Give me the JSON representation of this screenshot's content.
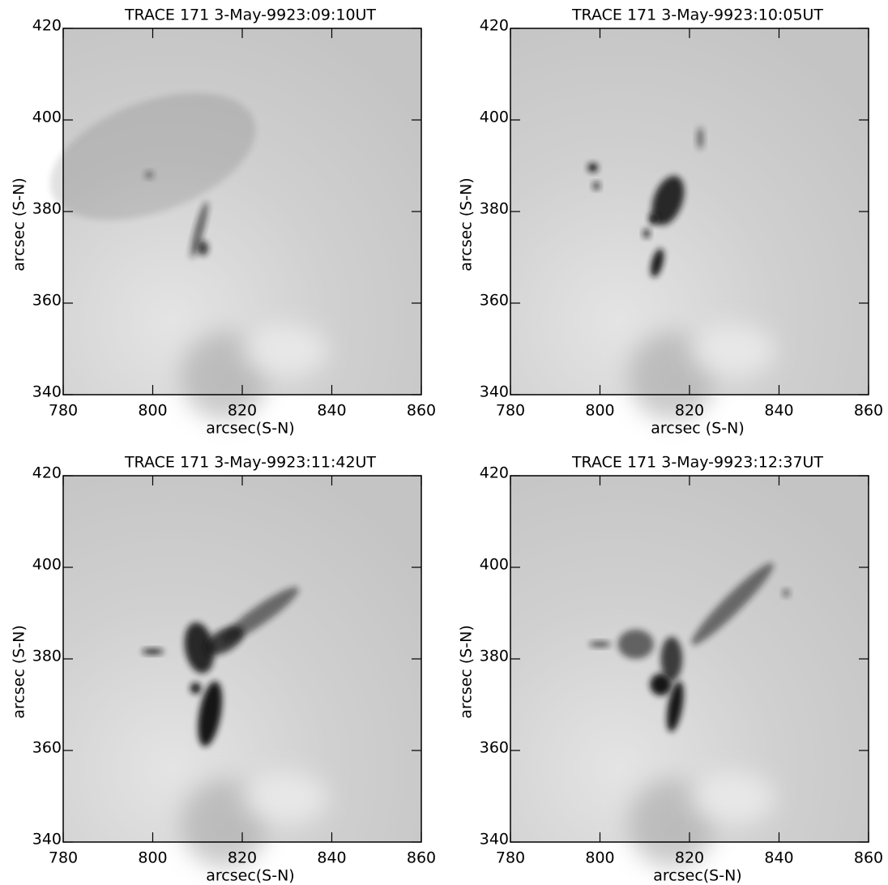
{
  "chart_data": [
    {
      "type": "image",
      "title": "TRACE 171 3-May-9923:09:10UT",
      "xlabel": "arcsec(S-N)",
      "ylabel": "arcsec (S-N)",
      "xlim": [
        780,
        860
      ],
      "ylim": [
        340,
        420
      ],
      "xticks": [
        780,
        800,
        820,
        840,
        860
      ],
      "yticks": [
        340,
        360,
        380,
        400,
        420
      ]
    },
    {
      "type": "image",
      "title": "TRACE 171 3-May-9923:10:05UT",
      "xlabel": "arcsec (S-N)",
      "ylabel": "arcsec (S-N)",
      "xlim": [
        780,
        860
      ],
      "ylim": [
        340,
        420
      ],
      "xticks": [
        780,
        800,
        820,
        840,
        860
      ],
      "yticks": [
        340,
        360,
        380,
        400,
        420
      ]
    },
    {
      "type": "image",
      "title": "TRACE 171 3-May-9923:11:42UT",
      "xlabel": "arcsec(S-N)",
      "ylabel": "arcsec (S-N)",
      "xlim": [
        780,
        860
      ],
      "ylim": [
        340,
        420
      ],
      "xticks": [
        780,
        800,
        820,
        840,
        860
      ],
      "yticks": [
        340,
        360,
        380,
        400,
        420
      ]
    },
    {
      "type": "image",
      "title": "TRACE 171 3-May-9923:12:37UT",
      "xlabel": "arcsec(S-N)",
      "ylabel": "arcsec (S-N)",
      "xlim": [
        780,
        860
      ],
      "ylim": [
        340,
        420
      ],
      "xticks": [
        780,
        800,
        820,
        840,
        860
      ],
      "yticks": [
        340,
        360,
        380,
        400,
        420
      ]
    }
  ]
}
